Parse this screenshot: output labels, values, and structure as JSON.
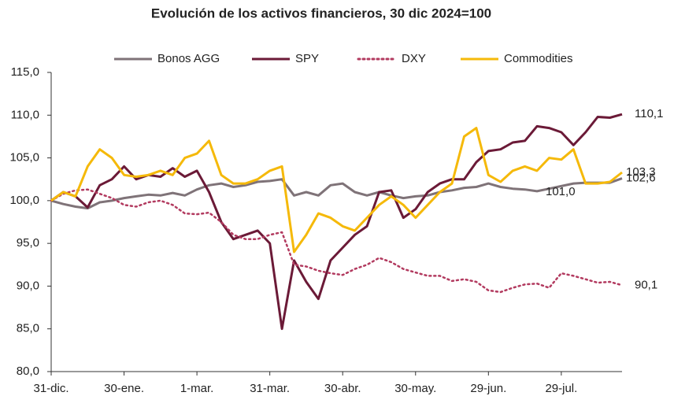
{
  "chart_data": {
    "type": "line",
    "title": "Evolución de los activos financieros, 30 dic 2024=100",
    "categories": [
      "31-dic.",
      null,
      null,
      null,
      null,
      null,
      "30-ene.",
      null,
      null,
      null,
      null,
      null,
      "1-mar.",
      null,
      null,
      null,
      null,
      null,
      "31-mar.",
      null,
      null,
      null,
      null,
      null,
      "30-abr.",
      null,
      null,
      null,
      null,
      null,
      "30-may.",
      null,
      null,
      null,
      null,
      null,
      "29-jun.",
      null,
      null,
      null,
      null,
      null,
      "29-jul.",
      null,
      null,
      null,
      null,
      null
    ],
    "series": [
      {
        "name": "Bonos AGG",
        "color": "#7f7378",
        "dash": "solid",
        "values": [
          100,
          99.6,
          99.3,
          99.1,
          99.8,
          100,
          100.3,
          100.5,
          100.7,
          100.6,
          100.9,
          100.6,
          101.3,
          101.8,
          102,
          101.6,
          101.8,
          102.2,
          102.3,
          102.5,
          100.6,
          101,
          100.6,
          101.8,
          102,
          101,
          100.6,
          101,
          100.6,
          100.3,
          100.5,
          100.6,
          101,
          101.2,
          101.5,
          101.6,
          102,
          101.6,
          101.4,
          101.3,
          101.1,
          101.4,
          101.7,
          102,
          102.1,
          102.1,
          102.1,
          102.6
        ]
      },
      {
        "name": "SPY",
        "color": "#6b1a37",
        "dash": "solid",
        "values": [
          100,
          101,
          100.5,
          99.2,
          101.8,
          102.5,
          104,
          102.5,
          103,
          102.8,
          103.8,
          102.8,
          103.5,
          101,
          97.5,
          95.5,
          96,
          96.5,
          95,
          85,
          93,
          90.5,
          88.5,
          93,
          94.5,
          96,
          97,
          101,
          101.2,
          98,
          99,
          101,
          102,
          102.5,
          102.5,
          104.5,
          105.8,
          106,
          106.8,
          107,
          108.7,
          108.5,
          108,
          106.5,
          108,
          109.8,
          109.7,
          110.1
        ]
      },
      {
        "name": "DXY",
        "color": "#b23a5f",
        "dash": "dotted",
        "values": [
          100,
          100.8,
          101.2,
          101.3,
          100.8,
          100.3,
          99.5,
          99.3,
          99.8,
          100,
          99.5,
          98.5,
          98.4,
          98.6,
          97.5,
          96,
          95.5,
          95.5,
          96,
          96.3,
          92.5,
          92.3,
          91.8,
          91.5,
          91.3,
          92,
          92.5,
          93.3,
          92.8,
          92,
          91.6,
          91.2,
          91.2,
          90.6,
          90.8,
          90.5,
          89.5,
          89.3,
          89.8,
          90.2,
          90.3,
          89.8,
          91.5,
          91.2,
          90.8,
          90.4,
          90.5,
          90.1
        ]
      },
      {
        "name": "Commodities",
        "color": "#f5b90a",
        "dash": "solid",
        "values": [
          100,
          101,
          100.5,
          104,
          106,
          105,
          103,
          102.8,
          103,
          103.5,
          103,
          105,
          105.5,
          107,
          103,
          102,
          102,
          102.5,
          103.5,
          104,
          94,
          96,
          98.5,
          98,
          97,
          96.5,
          98,
          99.5,
          100.5,
          99.5,
          98,
          99.5,
          101,
          102,
          107.5,
          108.5,
          103,
          102.2,
          103.5,
          104,
          103.5,
          105,
          104.8,
          106,
          102,
          102,
          102.2,
          103.3
        ]
      }
    ],
    "ylim": [
      80,
      115
    ],
    "yticks": [
      {
        "value": 80,
        "label": "80,0"
      },
      {
        "value": 85,
        "label": "85,0"
      },
      {
        "value": 90,
        "label": "90,0"
      },
      {
        "value": 95,
        "label": "95,0"
      },
      {
        "value": 100,
        "label": "100,0"
      },
      {
        "value": 105,
        "label": "105,0"
      },
      {
        "value": 110,
        "label": "110,0"
      },
      {
        "value": 115,
        "label": "115,0"
      }
    ],
    "grid": false,
    "legend": "top",
    "annotations": [
      {
        "value": 110.1,
        "label": "110,1"
      },
      {
        "value": 103.3,
        "label": "103,3"
      },
      {
        "value": 102.6,
        "label": "102,6"
      },
      {
        "value": 101.0,
        "label": "101,0"
      },
      {
        "value": 90.1,
        "label": "90,1"
      }
    ]
  }
}
